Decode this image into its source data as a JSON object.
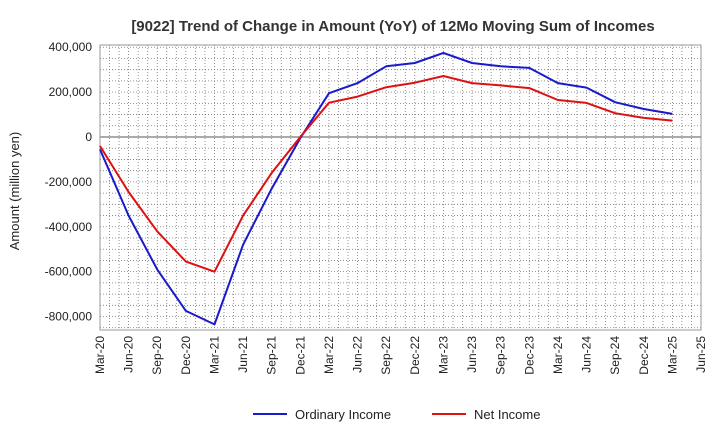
{
  "chart_data": {
    "type": "line",
    "title": "[9022]  Trend of Change in Amount (YoY) of 12Mo Moving Sum of Incomes",
    "xlabel": "",
    "ylabel": "Amount (million yen)",
    "ylim": [
      -860000,
      410000
    ],
    "yticks": [
      400000,
      200000,
      0,
      -200000,
      -400000,
      -600000,
      -800000
    ],
    "ytick_labels": [
      "400,000",
      "200,000",
      "0",
      "-200,000",
      "-400,000",
      "-600,000",
      "-800,000"
    ],
    "x": [
      "Mar-20",
      "Jun-20",
      "Sep-20",
      "Dec-20",
      "Mar-21",
      "Jun-21",
      "Sep-21",
      "Dec-21",
      "Mar-22",
      "Jun-22",
      "Sep-22",
      "Dec-22",
      "Mar-23",
      "Jun-23",
      "Sep-23",
      "Dec-23",
      "Mar-24",
      "Jun-24",
      "Sep-24",
      "Dec-24",
      "Mar-25",
      "Jun-25"
    ],
    "grid": true,
    "legend_position": "bottom",
    "series": [
      {
        "name": "Ordinary Income",
        "color": "#1a1acc",
        "values": [
          -55000,
          -350000,
          -590000,
          -775000,
          -835000,
          -480000,
          -230000,
          -5000,
          195000,
          240000,
          315000,
          330000,
          375000,
          330000,
          315000,
          308000,
          240000,
          220000,
          155000,
          125000,
          103000,
          null
        ]
      },
      {
        "name": "Net Income",
        "color": "#dd1111",
        "values": [
          -40000,
          -245000,
          -420000,
          -555000,
          -600000,
          -350000,
          -160000,
          0,
          153000,
          180000,
          222000,
          242000,
          272000,
          240000,
          230000,
          218000,
          165000,
          152000,
          106000,
          85000,
          73000,
          null
        ]
      }
    ]
  }
}
